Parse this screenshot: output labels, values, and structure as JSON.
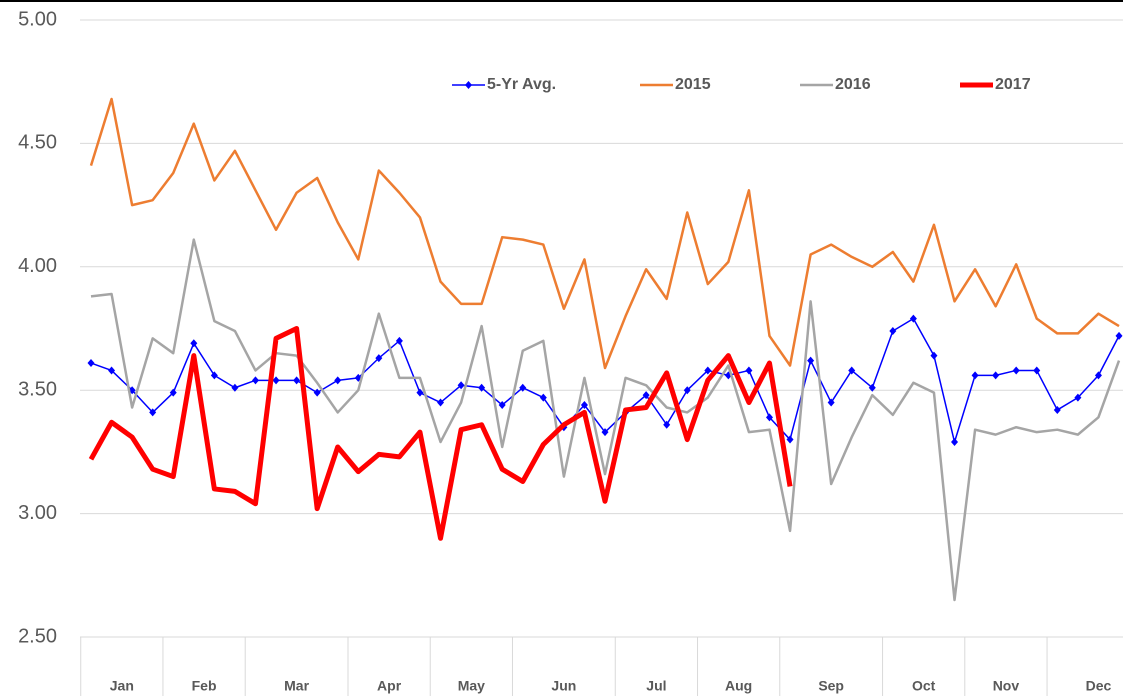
{
  "chart_data": {
    "type": "line",
    "categories": [
      "Jan",
      null,
      null,
      null,
      "Feb",
      null,
      null,
      null,
      "Mar",
      null,
      null,
      null,
      null,
      "Apr",
      null,
      null,
      null,
      "May",
      null,
      null,
      null,
      "Jun",
      null,
      null,
      null,
      null,
      "Jul",
      null,
      null,
      null,
      "Aug",
      null,
      null,
      null,
      "Sep",
      null,
      null,
      null,
      null,
      "Oct",
      null,
      null,
      null,
      "Nov",
      null,
      null,
      null,
      "Dec",
      null,
      null,
      null
    ],
    "series": [
      {
        "name": "5-Yr Avg.",
        "color": "#0000ff",
        "marker": true,
        "values": [
          3.61,
          3.58,
          3.5,
          3.41,
          3.49,
          3.69,
          3.56,
          3.51,
          3.54,
          3.54,
          3.54,
          3.49,
          3.54,
          3.55,
          3.63,
          3.7,
          3.49,
          3.45,
          3.52,
          3.51,
          3.44,
          3.51,
          3.47,
          3.35,
          3.44,
          3.33,
          3.41,
          3.48,
          3.36,
          3.5,
          3.58,
          3.56,
          3.58,
          3.39,
          3.3,
          3.62,
          3.45,
          3.58,
          3.51,
          3.74,
          3.79,
          3.64,
          3.29,
          3.56,
          3.56,
          3.58,
          3.58,
          3.42,
          3.47,
          3.56,
          3.72
        ]
      },
      {
        "name": "2015",
        "color": "#ed7d31",
        "values": [
          4.41,
          4.68,
          4.25,
          4.27,
          4.38,
          4.58,
          4.35,
          4.47,
          4.31,
          4.15,
          4.3,
          4.36,
          4.18,
          4.03,
          4.39,
          4.3,
          4.2,
          3.94,
          3.85,
          3.85,
          4.12,
          4.11,
          4.09,
          3.83,
          4.03,
          3.59,
          3.8,
          3.99,
          3.87,
          4.22,
          3.93,
          4.02,
          4.31,
          3.72,
          3.6,
          4.05,
          4.09,
          4.04,
          4.0,
          4.06,
          3.94,
          4.17,
          3.86,
          3.99,
          3.84,
          4.01,
          3.79,
          3.73,
          3.73,
          3.81,
          3.76
        ]
      },
      {
        "name": "2016",
        "color": "#a5a5a5",
        "values": [
          3.88,
          3.89,
          3.43,
          3.71,
          3.65,
          4.11,
          3.78,
          3.74,
          3.58,
          3.65,
          3.64,
          3.53,
          3.41,
          3.5,
          3.81,
          3.55,
          3.55,
          3.29,
          3.45,
          3.76,
          3.27,
          3.66,
          3.7,
          3.15,
          3.55,
          3.16,
          3.55,
          3.52,
          3.43,
          3.41,
          3.47,
          3.6,
          3.33,
          3.34,
          2.93,
          3.86,
          3.12,
          3.31,
          3.48,
          3.4,
          3.53,
          3.49,
          2.65,
          3.34,
          3.32,
          3.35,
          3.33,
          3.34,
          3.32,
          3.39,
          3.62
        ]
      },
      {
        "name": "2017",
        "color": "#ff0000",
        "values": [
          3.22,
          3.37,
          3.31,
          3.18,
          3.15,
          3.64,
          3.1,
          3.09,
          3.04,
          3.71,
          3.75,
          3.02,
          3.27,
          3.17,
          3.24,
          3.23,
          3.33,
          2.9,
          3.34,
          3.36,
          3.18,
          3.13,
          3.28,
          3.36,
          3.41,
          3.05,
          3.42,
          3.43,
          3.57,
          3.3,
          3.54,
          3.64,
          3.45,
          3.61,
          3.11,
          null,
          null,
          null,
          null,
          null,
          null,
          null,
          null,
          null,
          null,
          null,
          null,
          null,
          null,
          null,
          null
        ]
      }
    ],
    "ylim": [
      2.5,
      5.0
    ],
    "yticks": [
      {
        "value": 2.5,
        "label": "2.50"
      },
      {
        "value": 3,
        "label": "3.00"
      },
      {
        "value": 3.5,
        "label": "3.50"
      },
      {
        "value": 4,
        "label": "4.00"
      },
      {
        "value": 4.5,
        "label": "4.50"
      },
      {
        "value": 5,
        "label": "5.00"
      }
    ],
    "grid": true,
    "legend": "top"
  }
}
